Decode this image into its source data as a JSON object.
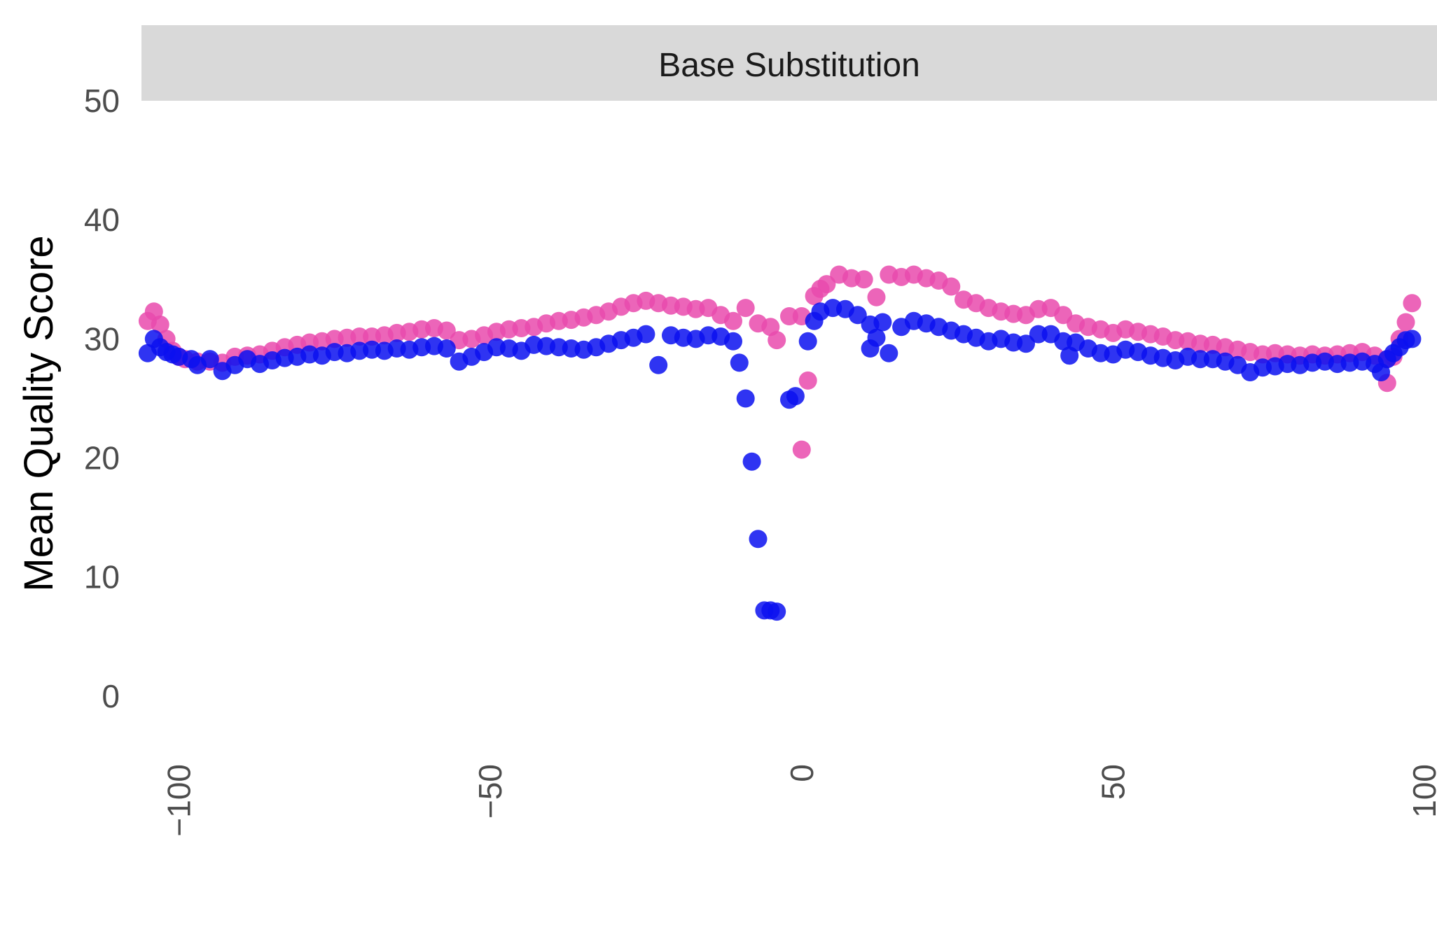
{
  "chart_data": {
    "type": "scatter",
    "title": "",
    "facet_label": "Base Substitution",
    "xlabel": "",
    "ylabel": "Mean Quality Score",
    "xlim": [
      -106,
      102
    ],
    "ylim": [
      -5,
      50
    ],
    "x_ticks": [
      -100,
      -50,
      0,
      50,
      100
    ],
    "x_tick_labels": [
      "−100",
      "−50",
      "0",
      "50",
      "100"
    ],
    "y_ticks": [
      0,
      10,
      20,
      30,
      40,
      50
    ],
    "y_tick_labels": [
      "0",
      "10",
      "20",
      "30",
      "40",
      "50"
    ],
    "grid": false,
    "legend": "none",
    "series": [
      {
        "color": "#e94aad",
        "points": [
          [
            -105,
            31.5
          ],
          [
            -104,
            32.3
          ],
          [
            -103,
            31.2
          ],
          [
            -102,
            30.0
          ],
          [
            -101,
            29.0
          ],
          [
            -100,
            28.5
          ],
          [
            -99,
            28.3
          ],
          [
            -97,
            28.1
          ],
          [
            -95,
            28.1
          ],
          [
            -93,
            28.0
          ],
          [
            -91,
            28.5
          ],
          [
            -89,
            28.6
          ],
          [
            -87,
            28.7
          ],
          [
            -85,
            29.0
          ],
          [
            -83,
            29.3
          ],
          [
            -81,
            29.5
          ],
          [
            -79,
            29.7
          ],
          [
            -77,
            29.8
          ],
          [
            -75,
            30.0
          ],
          [
            -73,
            30.1
          ],
          [
            -71,
            30.2
          ],
          [
            -69,
            30.2
          ],
          [
            -67,
            30.3
          ],
          [
            -65,
            30.5
          ],
          [
            -63,
            30.6
          ],
          [
            -61,
            30.8
          ],
          [
            -59,
            30.9
          ],
          [
            -57,
            30.7
          ],
          [
            -55,
            29.9
          ],
          [
            -53,
            30.0
          ],
          [
            -51,
            30.3
          ],
          [
            -49,
            30.6
          ],
          [
            -47,
            30.8
          ],
          [
            -45,
            30.9
          ],
          [
            -43,
            31.0
          ],
          [
            -41,
            31.3
          ],
          [
            -39,
            31.5
          ],
          [
            -37,
            31.6
          ],
          [
            -35,
            31.8
          ],
          [
            -33,
            32.0
          ],
          [
            -31,
            32.3
          ],
          [
            -29,
            32.7
          ],
          [
            -27,
            33.0
          ],
          [
            -25,
            33.2
          ],
          [
            -23,
            33.0
          ],
          [
            -21,
            32.8
          ],
          [
            -19,
            32.7
          ],
          [
            -17,
            32.5
          ],
          [
            -15,
            32.6
          ],
          [
            -13,
            32.0
          ],
          [
            -11,
            31.5
          ],
          [
            -9,
            32.6
          ],
          [
            -7,
            31.3
          ],
          [
            -5,
            31.0
          ],
          [
            -4,
            29.9
          ],
          [
            -2,
            31.9
          ],
          [
            0,
            31.9
          ],
          [
            1,
            26.5
          ],
          [
            0,
            20.7
          ],
          [
            2,
            33.6
          ],
          [
            3,
            34.2
          ],
          [
            4,
            34.6
          ],
          [
            6,
            35.4
          ],
          [
            8,
            35.1
          ],
          [
            10,
            35.0
          ],
          [
            12,
            33.5
          ],
          [
            14,
            35.4
          ],
          [
            16,
            35.2
          ],
          [
            18,
            35.4
          ],
          [
            20,
            35.1
          ],
          [
            22,
            34.9
          ],
          [
            24,
            34.4
          ],
          [
            26,
            33.3
          ],
          [
            28,
            33.0
          ],
          [
            30,
            32.6
          ],
          [
            32,
            32.3
          ],
          [
            34,
            32.1
          ],
          [
            36,
            32.0
          ],
          [
            38,
            32.5
          ],
          [
            40,
            32.6
          ],
          [
            42,
            32.0
          ],
          [
            44,
            31.3
          ],
          [
            46,
            31.0
          ],
          [
            48,
            30.8
          ],
          [
            50,
            30.5
          ],
          [
            52,
            30.8
          ],
          [
            54,
            30.6
          ],
          [
            56,
            30.4
          ],
          [
            58,
            30.2
          ],
          [
            60,
            29.9
          ],
          [
            62,
            29.8
          ],
          [
            64,
            29.6
          ],
          [
            66,
            29.5
          ],
          [
            68,
            29.3
          ],
          [
            70,
            29.1
          ],
          [
            72,
            28.9
          ],
          [
            74,
            28.7
          ],
          [
            76,
            28.8
          ],
          [
            78,
            28.7
          ],
          [
            80,
            28.6
          ],
          [
            82,
            28.7
          ],
          [
            84,
            28.6
          ],
          [
            86,
            28.7
          ],
          [
            88,
            28.8
          ],
          [
            90,
            28.9
          ],
          [
            92,
            28.6
          ],
          [
            94,
            28.3
          ],
          [
            94,
            26.3
          ],
          [
            95,
            28.5
          ],
          [
            96,
            30.0
          ],
          [
            97,
            31.4
          ],
          [
            98,
            33.0
          ]
        ]
      },
      {
        "color": "#0a10f0",
        "points": [
          [
            -105,
            28.8
          ],
          [
            -104,
            30.0
          ],
          [
            -103,
            29.3
          ],
          [
            -102,
            28.9
          ],
          [
            -101,
            28.7
          ],
          [
            -100,
            28.5
          ],
          [
            -98,
            28.3
          ],
          [
            -97,
            27.8
          ],
          [
            -95,
            28.3
          ],
          [
            -93,
            27.3
          ],
          [
            -91,
            27.8
          ],
          [
            -89,
            28.3
          ],
          [
            -87,
            27.9
          ],
          [
            -85,
            28.2
          ],
          [
            -83,
            28.4
          ],
          [
            -81,
            28.5
          ],
          [
            -79,
            28.7
          ],
          [
            -77,
            28.6
          ],
          [
            -75,
            28.9
          ],
          [
            -73,
            28.8
          ],
          [
            -71,
            29.0
          ],
          [
            -69,
            29.1
          ],
          [
            -67,
            29.0
          ],
          [
            -65,
            29.2
          ],
          [
            -63,
            29.1
          ],
          [
            -61,
            29.3
          ],
          [
            -59,
            29.4
          ],
          [
            -57,
            29.2
          ],
          [
            -55,
            28.1
          ],
          [
            -53,
            28.5
          ],
          [
            -51,
            28.9
          ],
          [
            -49,
            29.3
          ],
          [
            -47,
            29.2
          ],
          [
            -45,
            29.0
          ],
          [
            -43,
            29.5
          ],
          [
            -41,
            29.4
          ],
          [
            -39,
            29.3
          ],
          [
            -37,
            29.2
          ],
          [
            -35,
            29.1
          ],
          [
            -33,
            29.3
          ],
          [
            -31,
            29.6
          ],
          [
            -29,
            29.9
          ],
          [
            -27,
            30.1
          ],
          [
            -25,
            30.4
          ],
          [
            -23,
            27.8
          ],
          [
            -21,
            30.3
          ],
          [
            -19,
            30.1
          ],
          [
            -17,
            30.0
          ],
          [
            -15,
            30.3
          ],
          [
            -13,
            30.2
          ],
          [
            -11,
            29.8
          ],
          [
            -10,
            28.0
          ],
          [
            -9,
            25.0
          ],
          [
            -8,
            19.7
          ],
          [
            -7,
            13.2
          ],
          [
            -6,
            7.2
          ],
          [
            -5,
            7.2
          ],
          [
            -4,
            7.1
          ],
          [
            -2,
            24.9
          ],
          [
            -1,
            25.2
          ],
          [
            1,
            29.8
          ],
          [
            2,
            31.5
          ],
          [
            3,
            32.3
          ],
          [
            5,
            32.6
          ],
          [
            7,
            32.5
          ],
          [
            9,
            32.0
          ],
          [
            11,
            31.2
          ],
          [
            11,
            29.2
          ],
          [
            12,
            30.1
          ],
          [
            13,
            31.4
          ],
          [
            14,
            28.8
          ],
          [
            16,
            31.0
          ],
          [
            18,
            31.5
          ],
          [
            20,
            31.3
          ],
          [
            22,
            31.0
          ],
          [
            24,
            30.7
          ],
          [
            26,
            30.4
          ],
          [
            28,
            30.1
          ],
          [
            30,
            29.8
          ],
          [
            32,
            30.0
          ],
          [
            34,
            29.7
          ],
          [
            36,
            29.6
          ],
          [
            38,
            30.4
          ],
          [
            40,
            30.4
          ],
          [
            42,
            29.8
          ],
          [
            43,
            28.6
          ],
          [
            44,
            29.7
          ],
          [
            46,
            29.2
          ],
          [
            48,
            28.8
          ],
          [
            50,
            28.7
          ],
          [
            52,
            29.1
          ],
          [
            54,
            28.9
          ],
          [
            56,
            28.6
          ],
          [
            58,
            28.4
          ],
          [
            60,
            28.2
          ],
          [
            62,
            28.5
          ],
          [
            64,
            28.3
          ],
          [
            66,
            28.3
          ],
          [
            68,
            28.1
          ],
          [
            70,
            27.8
          ],
          [
            72,
            27.2
          ],
          [
            74,
            27.6
          ],
          [
            76,
            27.7
          ],
          [
            78,
            27.9
          ],
          [
            80,
            27.8
          ],
          [
            82,
            28.0
          ],
          [
            84,
            28.1
          ],
          [
            86,
            27.9
          ],
          [
            88,
            28.0
          ],
          [
            90,
            28.1
          ],
          [
            92,
            27.9
          ],
          [
            93,
            27.2
          ],
          [
            94,
            28.3
          ],
          [
            95,
            28.8
          ],
          [
            96,
            29.3
          ],
          [
            97,
            29.9
          ],
          [
            98,
            30.0
          ]
        ]
      }
    ]
  }
}
